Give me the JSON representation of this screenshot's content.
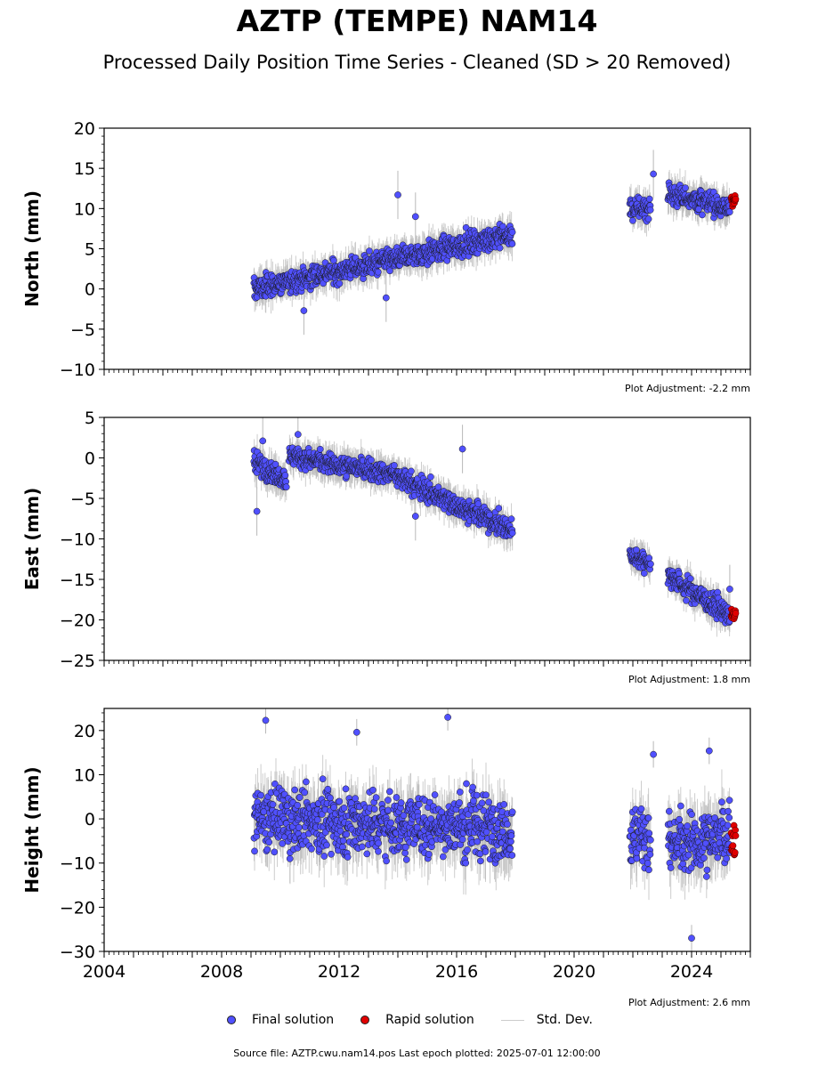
{
  "title": "AZTP (TEMPE) NAM14",
  "subtitle": "Processed Daily Position Time Series - Cleaned (SD > 20 Removed)",
  "source_text": "Source file: AZTP.cwu.nam14.pos  Last epoch plotted: 2025-07-01 12:00:00",
  "legend": {
    "final": "Final solution",
    "rapid": "Rapid solution",
    "std": "Std. Dev."
  },
  "colors": {
    "final": "#5050ff",
    "rapid": "#e00000",
    "std": "#c8c8c8"
  },
  "chart_data": [
    {
      "type": "scatter",
      "ylabel": "North (mm)",
      "ylim": [
        -10,
        20
      ],
      "yticks": [
        -10,
        -5,
        0,
        5,
        10,
        15,
        20
      ],
      "xlim": [
        2004,
        2026
      ],
      "xticks": [
        2004,
        2008,
        2012,
        2016,
        2020,
        2024
      ],
      "adjustment": "Plot Adjustment: -2.2 mm",
      "segments": [
        {
          "x0": 2009.1,
          "x1": 2017.9,
          "y0": 0.0,
          "y1": 6.8,
          "noise": 1.0,
          "sd": 1.5
        },
        {
          "x0": 2021.9,
          "x1": 2022.6,
          "y0": 9.8,
          "y1": 10.2,
          "noise": 1.0,
          "sd": 1.5
        },
        {
          "x0": 2023.2,
          "x1": 2025.3,
          "y0": 12.0,
          "y1": 10.0,
          "noise": 1.0,
          "sd": 1.5
        }
      ],
      "rapid": {
        "x0": 2025.35,
        "x1": 2025.5,
        "y": 11.2,
        "noise": 0.6
      },
      "outliers": [
        [
          2014.0,
          11.7
        ],
        [
          2014.6,
          9.0
        ],
        [
          2022.7,
          14.3
        ],
        [
          2010.8,
          -2.7
        ],
        [
          2013.6,
          -1.1
        ]
      ]
    },
    {
      "type": "scatter",
      "ylabel": "East (mm)",
      "ylim": [
        -25,
        5
      ],
      "yticks": [
        -25,
        -20,
        -15,
        -10,
        -5,
        0,
        5
      ],
      "xlim": [
        2004,
        2026
      ],
      "xticks": [
        2004,
        2008,
        2012,
        2016,
        2020,
        2024
      ],
      "adjustment": "Plot Adjustment: 1.8 mm",
      "segments": [
        {
          "x0": 2009.1,
          "x1": 2010.2,
          "y0": -0.5,
          "y1": -2.5,
          "noise": 1.0,
          "sd": 1.5
        },
        {
          "x0": 2010.3,
          "x1": 2013.8,
          "y0": 0.2,
          "y1": -2.0,
          "noise": 0.9,
          "sd": 1.5
        },
        {
          "x0": 2013.8,
          "x1": 2017.9,
          "y0": -2.0,
          "y1": -9.0,
          "noise": 1.0,
          "sd": 1.5
        },
        {
          "x0": 2021.9,
          "x1": 2022.6,
          "y0": -12.0,
          "y1": -13.0,
          "noise": 0.8,
          "sd": 1.4
        },
        {
          "x0": 2023.2,
          "x1": 2025.3,
          "y0": -14.5,
          "y1": -19.5,
          "noise": 1.0,
          "sd": 1.5
        }
      ],
      "rapid": {
        "x0": 2025.35,
        "x1": 2025.5,
        "y": -19.5,
        "noise": 0.5
      },
      "outliers": [
        [
          2009.2,
          -6.6
        ],
        [
          2009.4,
          2.1
        ],
        [
          2010.6,
          2.9
        ],
        [
          2014.6,
          -7.2
        ],
        [
          2016.2,
          1.1
        ],
        [
          2025.3,
          -16.2
        ]
      ]
    },
    {
      "type": "scatter",
      "ylabel": "Height (mm)",
      "ylim": [
        -30,
        25
      ],
      "yticks": [
        -30,
        -20,
        -10,
        0,
        10,
        20
      ],
      "xlim": [
        2004,
        2026
      ],
      "xticks": [
        2004,
        2008,
        2012,
        2016,
        2020,
        2024
      ],
      "xticklabels": [
        "2004",
        "2008",
        "2012",
        "2016",
        "2020",
        "2024"
      ],
      "adjustment": "Plot Adjustment: 2.6 mm",
      "segments": [
        {
          "x0": 2009.1,
          "x1": 2017.9,
          "y0": 0.0,
          "y1": -2.0,
          "noise": 5.0,
          "sd": 5.0
        },
        {
          "x0": 2021.9,
          "x1": 2022.6,
          "y0": -4.0,
          "y1": -4.0,
          "noise": 5.0,
          "sd": 5.0
        },
        {
          "x0": 2023.2,
          "x1": 2025.3,
          "y0": -6.0,
          "y1": -4.0,
          "noise": 5.0,
          "sd": 5.0
        }
      ],
      "rapid": {
        "x0": 2025.35,
        "x1": 2025.5,
        "y": -5.0,
        "noise": 2.5
      },
      "outliers": [
        [
          2009.5,
          22.3
        ],
        [
          2015.7,
          23.0
        ],
        [
          2012.6,
          19.6
        ],
        [
          2024.0,
          -27.0
        ],
        [
          2022.7,
          14.6
        ],
        [
          2024.6,
          15.4
        ]
      ]
    }
  ]
}
